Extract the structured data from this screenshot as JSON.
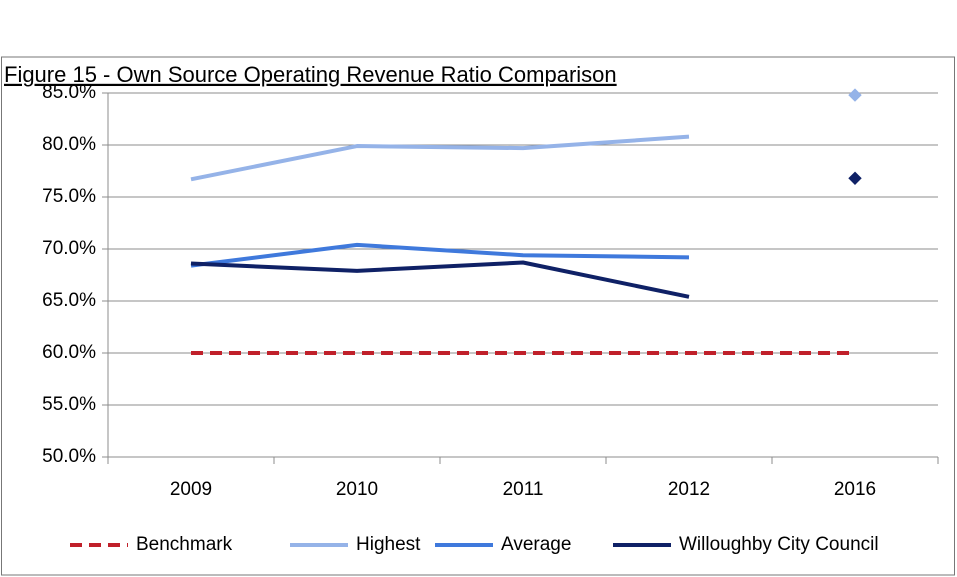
{
  "chart_data": {
    "type": "line",
    "title": "Figure 15 - Own Source Operating Revenue Ratio Comparison",
    "categories": [
      "2009",
      "2010",
      "2011",
      "2012",
      "2016"
    ],
    "series": [
      {
        "name": "Benchmark",
        "color": "#c0202a",
        "dashed": true,
        "values": [
          60,
          60,
          60,
          60,
          60
        ]
      },
      {
        "name": "Highest",
        "color": "#95b3e8",
        "dashed": false,
        "values": [
          76.7,
          79.9,
          79.7,
          80.8,
          null
        ],
        "marker_values": [
          null,
          null,
          null,
          null,
          84.8
        ]
      },
      {
        "name": "Average",
        "color": "#3f79dc",
        "dashed": false,
        "values": [
          68.4,
          70.4,
          69.4,
          69.2,
          null
        ]
      },
      {
        "name": "Willoughby City Council",
        "color": "#0f2166",
        "dashed": false,
        "values": [
          68.6,
          67.9,
          68.7,
          65.4,
          null
        ],
        "marker_values": [
          null,
          null,
          null,
          null,
          76.8
        ]
      }
    ],
    "ylim": [
      50,
      85
    ],
    "yticks": [
      {
        "value": 50,
        "label": "50.0%"
      },
      {
        "value": 55,
        "label": "55.0%"
      },
      {
        "value": 60,
        "label": "60.0%"
      },
      {
        "value": 65,
        "label": "65.0%"
      },
      {
        "value": 70,
        "label": "70.0%"
      },
      {
        "value": 75,
        "label": "75.0%"
      },
      {
        "value": 80,
        "label": "80.0%"
      },
      {
        "value": 85,
        "label": "85.0%"
      }
    ],
    "grid": true,
    "legend": "bottom"
  }
}
